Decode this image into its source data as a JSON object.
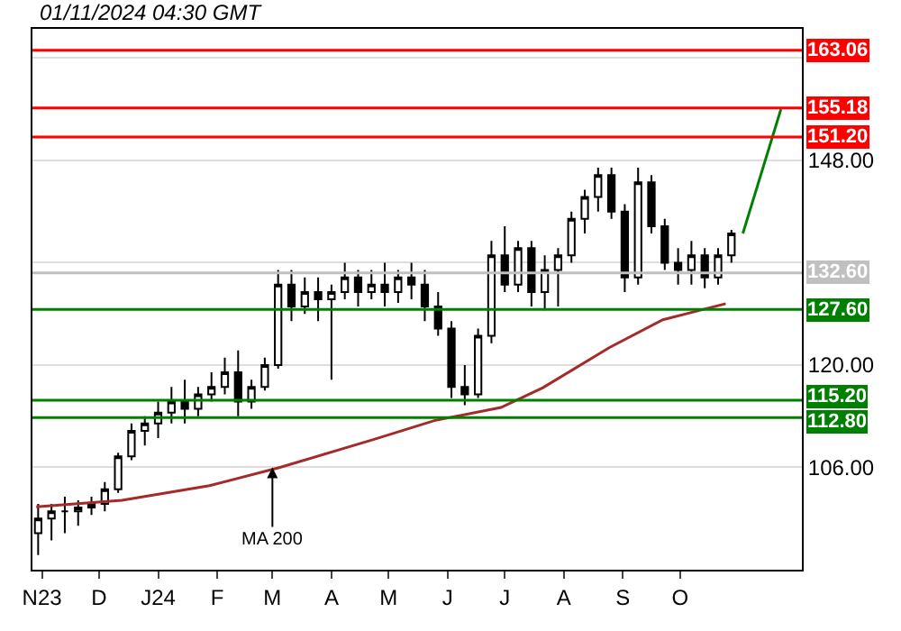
{
  "chart_data": {
    "type": "candlestick",
    "title": "01/11/2024 04:30 GMT",
    "x": [
      "2023-10-30",
      "2023-11-06",
      "2023-11-13",
      "2023-11-20",
      "2023-11-27",
      "2023-12-04",
      "2023-12-11",
      "2023-12-18",
      "2023-12-25",
      "2024-01-01",
      "2024-01-08",
      "2024-01-15",
      "2024-01-22",
      "2024-01-29",
      "2024-02-05",
      "2024-02-12",
      "2024-02-19",
      "2024-02-26",
      "2024-03-04",
      "2024-03-11",
      "2024-03-18",
      "2024-03-25",
      "2024-04-01",
      "2024-04-08",
      "2024-04-15",
      "2024-04-22",
      "2024-04-29",
      "2024-05-06",
      "2024-05-13",
      "2024-05-20",
      "2024-05-27",
      "2024-06-03",
      "2024-06-10",
      "2024-06-17",
      "2024-06-24",
      "2024-07-01",
      "2024-07-08",
      "2024-07-15",
      "2024-07-22",
      "2024-07-29",
      "2024-08-05",
      "2024-08-12",
      "2024-08-19",
      "2024-08-26",
      "2024-09-02",
      "2024-09-09",
      "2024-09-16",
      "2024-09-23",
      "2024-09-30",
      "2024-10-07",
      "2024-10-14",
      "2024-10-21",
      "2024-10-28"
    ],
    "ohlc": [
      [
        97,
        101,
        94,
        99
      ],
      [
        99,
        101,
        96,
        100
      ],
      [
        100,
        102,
        97,
        100
      ],
      [
        100,
        101.5,
        98,
        100.5
      ],
      [
        100.5,
        102,
        99.5,
        101
      ],
      [
        101,
        104,
        100,
        103
      ],
      [
        103,
        108,
        102.5,
        107.5
      ],
      [
        107.5,
        112,
        107,
        111
      ],
      [
        111,
        113,
        109,
        112
      ],
      [
        112,
        115,
        110,
        113.5
      ],
      [
        113.5,
        117,
        112,
        115
      ],
      [
        115,
        118,
        112,
        114
      ],
      [
        114,
        117,
        113,
        116
      ],
      [
        116,
        119,
        115,
        117
      ],
      [
        117,
        121,
        116,
        119
      ],
      [
        119,
        122,
        113,
        115
      ],
      [
        115,
        118,
        114,
        117
      ],
      [
        117,
        121,
        116.5,
        120
      ],
      [
        120,
        133,
        119.5,
        131
      ],
      [
        131,
        133,
        126,
        128
      ],
      [
        128,
        132,
        127,
        130
      ],
      [
        130,
        132,
        126,
        129
      ],
      [
        129,
        131,
        118,
        130
      ],
      [
        130,
        134,
        129,
        132
      ],
      [
        132,
        133,
        128,
        130
      ],
      [
        130,
        133,
        129,
        131
      ],
      [
        131,
        134,
        128,
        130
      ],
      [
        130,
        133,
        128.5,
        132
      ],
      [
        132,
        134,
        129,
        131
      ],
      [
        131,
        133,
        126,
        128
      ],
      [
        128,
        130,
        124,
        125
      ],
      [
        125,
        126,
        115.5,
        117
      ],
      [
        117,
        120,
        114.5,
        116
      ],
      [
        116,
        125,
        115.5,
        124
      ],
      [
        124,
        137,
        123,
        135
      ],
      [
        135,
        139,
        130,
        131
      ],
      [
        131,
        137,
        130,
        136
      ],
      [
        136,
        137,
        128,
        130
      ],
      [
        130,
        135,
        127.5,
        133
      ],
      [
        133,
        136,
        128,
        135
      ],
      [
        135,
        141,
        134,
        140
      ],
      [
        140,
        144,
        138,
        143
      ],
      [
        143,
        147,
        141,
        146
      ],
      [
        146,
        147,
        140,
        141
      ],
      [
        141,
        142,
        130,
        132
      ],
      [
        132,
        147,
        131,
        145
      ],
      [
        145,
        146,
        138,
        139
      ],
      [
        139,
        140,
        133,
        134
      ],
      [
        134,
        136,
        131,
        133
      ],
      [
        133,
        137,
        131,
        135
      ],
      [
        135,
        136,
        130.5,
        132
      ],
      [
        132,
        136,
        131,
        135
      ],
      [
        135,
        138.5,
        134,
        138
      ]
    ],
    "color": "#000000",
    "series": [
      {
        "type": "line",
        "color": "#a52a2a",
        "x": [
          "2023-10-29",
          "2023-12-13",
          "2024-01-28",
          "2024-03-05",
          "2024-04-23",
          "2024-05-25",
          "2024-06-29",
          "2024-07-21",
          "2024-08-25",
          "2024-09-22",
          "2024-10-25"
        ],
        "values": [
          100.6,
          101.5,
          103.5,
          106,
          109.8,
          112.4,
          114.2,
          116.9,
          122.4,
          126.2,
          128.4
        ]
      },
      {
        "type": "line",
        "color": "#008000",
        "x": [
          "2024-11-03",
          "2024-11-23"
        ],
        "values": [
          138,
          155
        ]
      }
    ],
    "annotations": [
      {
        "text": "MA 200",
        "x": "2024-03-01",
        "y": 106
      }
    ],
    "ref_lines": [
      {
        "axis": "y",
        "value": 163.06,
        "label": "163.06",
        "color": "#ff0000"
      },
      {
        "axis": "y",
        "value": 155.18,
        "label": "155.18",
        "color": "#ff0000"
      },
      {
        "axis": "y",
        "value": 151.2,
        "label": "151.20",
        "color": "#ff0000"
      },
      {
        "axis": "y",
        "value": 132.6,
        "label": "132.60",
        "color": "#c0c0c0"
      },
      {
        "axis": "y",
        "value": 127.6,
        "label": "127.60",
        "color": "#008000"
      },
      {
        "axis": "y",
        "value": 115.2,
        "label": "115.20",
        "color": "#008000"
      },
      {
        "axis": "y",
        "value": 112.8,
        "label": "112.80",
        "color": "#008000"
      }
    ],
    "xlim": [
      "2023-10-27",
      "2024-12-04"
    ],
    "xticks": [
      {
        "value": "2023-11-01",
        "label": "N23"
      },
      {
        "value": "2023-12-01",
        "label": "D"
      },
      {
        "value": "2024-01-01",
        "label": "J24"
      },
      {
        "value": "2024-02-01",
        "label": "F"
      },
      {
        "value": "2024-03-01",
        "label": "M"
      },
      {
        "value": "2024-04-01",
        "label": "A"
      },
      {
        "value": "2024-05-01",
        "label": "M"
      },
      {
        "value": "2024-06-01",
        "label": "J"
      },
      {
        "value": "2024-07-01",
        "label": "J"
      },
      {
        "value": "2024-08-01",
        "label": "A"
      },
      {
        "value": "2024-09-01",
        "label": "S"
      },
      {
        "value": "2024-10-01",
        "label": "O"
      }
    ],
    "ylim": [
      92,
      166
    ],
    "yticks": [
      {
        "value": 106,
        "label": "106.00"
      },
      {
        "value": 120,
        "label": "120.00"
      },
      {
        "value": 134,
        "label": null
      },
      {
        "value": 148,
        "label": "148.00"
      },
      {
        "value": 162,
        "label": null
      }
    ],
    "grid": "y"
  }
}
